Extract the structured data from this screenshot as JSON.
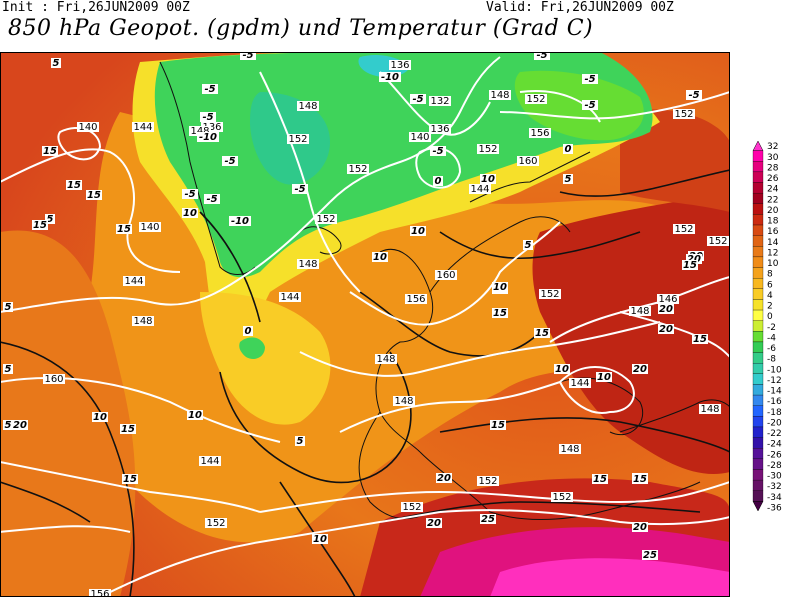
{
  "header": {
    "init": "Init : Fri,26JUN2009 00Z",
    "valid": "Valid: Fri,26JUN2009 00Z",
    "title": "850 hPa Geopot. (gpdm) und Temperatur (Grad C)"
  },
  "legend": {
    "levels": [
      "32",
      "30",
      "28",
      "26",
      "24",
      "22",
      "20",
      "18",
      "16",
      "14",
      "12",
      "10",
      "8",
      "6",
      "4",
      "2",
      "0",
      "-2",
      "-4",
      "-6",
      "-8",
      "-10",
      "-12",
      "-14",
      "-16",
      "-18",
      "-20",
      "-22",
      "-24",
      "-26",
      "-28",
      "-30",
      "-32",
      "-34",
      "-36"
    ],
    "colors": [
      "#ff33cc",
      "#ff00aa",
      "#e6007e",
      "#cc0055",
      "#b30030",
      "#a0001e",
      "#bb1010",
      "#cc2a10",
      "#d84a12",
      "#e06414",
      "#e87a18",
      "#f08c18",
      "#f4a21c",
      "#f8b820",
      "#f9cc26",
      "#f6e22a",
      "#ffff44",
      "#ccee33",
      "#66dd33",
      "#33cc55",
      "#33cc88",
      "#33ccaa",
      "#33cccc",
      "#33aadd",
      "#3388ee",
      "#2266ff",
      "#2244ee",
      "#2222cc",
      "#3311aa",
      "#551199",
      "#661188",
      "#771177",
      "#661166",
      "#551155",
      "#440044"
    ]
  },
  "map": {
    "geopotential_labels": [
      "132",
      "136",
      "136",
      "136",
      "140",
      "140",
      "140",
      "144",
      "144",
      "144",
      "144",
      "144",
      "144",
      "146",
      "148",
      "148",
      "148",
      "148",
      "148",
      "148",
      "148",
      "148",
      "148",
      "148",
      "152",
      "152",
      "152",
      "152",
      "152",
      "152",
      "152",
      "152",
      "152",
      "152",
      "152",
      "152",
      "152",
      "156",
      "156",
      "156",
      "160",
      "160",
      "160"
    ],
    "temperature_labels": [
      "5",
      "-5",
      "-5",
      "-5",
      "-10",
      "-5",
      "-5",
      "-10",
      "-5",
      "-5",
      "0",
      "-5",
      "-5",
      "-5",
      "-5",
      "-5",
      "-10",
      "-5",
      "-5",
      "0",
      "5",
      "10",
      "10",
      "5",
      "15",
      "15",
      "15",
      "15",
      "15",
      "5",
      "10",
      "10",
      "0",
      "10",
      "10",
      "10",
      "5",
      "5",
      "5",
      "15",
      "10",
      "10",
      "10",
      "15",
      "15",
      "20",
      "20",
      "20",
      "20",
      "20",
      "20",
      "20",
      "15",
      "20",
      "25",
      "25",
      "20",
      "15",
      "10",
      "5",
      "15",
      "20",
      "15",
      "15",
      "15"
    ]
  }
}
